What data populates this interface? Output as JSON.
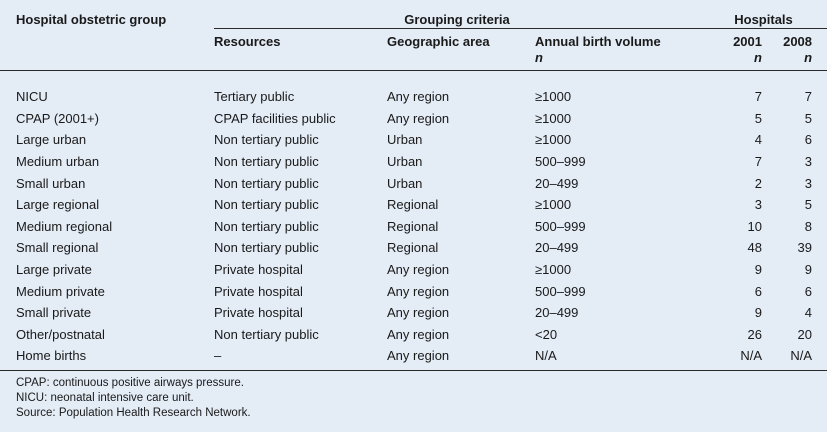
{
  "header": {
    "group_col": "Hospital obstetric group",
    "criteria": "Grouping criteria",
    "hospitals": "Hospitals",
    "resources": "Resources",
    "geographic": "Geographic area",
    "volume": "Annual birth volume",
    "volume_unit": "n",
    "year1": "2001",
    "year1_unit": "n",
    "year2": "2008",
    "year2_unit": "n"
  },
  "rows": [
    {
      "group": "NICU",
      "resources": "Tertiary public",
      "area": "Any region",
      "volume": "≥1000",
      "y2001": "7",
      "y2008": "7"
    },
    {
      "group": "CPAP (2001+)",
      "resources": "CPAP facilities public",
      "area": "Any region",
      "volume": "≥1000",
      "y2001": "5",
      "y2008": "5"
    },
    {
      "group": "Large urban",
      "resources": "Non tertiary public",
      "area": "Urban",
      "volume": "≥1000",
      "y2001": "4",
      "y2008": "6"
    },
    {
      "group": "Medium urban",
      "resources": "Non tertiary public",
      "area": "Urban",
      "volume": "500–999",
      "y2001": "7",
      "y2008": "3"
    },
    {
      "group": "Small urban",
      "resources": "Non tertiary public",
      "area": "Urban",
      "volume": "20–499",
      "y2001": "2",
      "y2008": "3"
    },
    {
      "group": "Large regional",
      "resources": "Non tertiary public",
      "area": "Regional",
      "volume": "≥1000",
      "y2001": "3",
      "y2008": "5"
    },
    {
      "group": "Medium regional",
      "resources": "Non tertiary public",
      "area": "Regional",
      "volume": "500–999",
      "y2001": "10",
      "y2008": "8"
    },
    {
      "group": "Small regional",
      "resources": "Non tertiary public",
      "area": "Regional",
      "volume": "20–499",
      "y2001": "48",
      "y2008": "39"
    },
    {
      "group": "Large private",
      "resources": "Private hospital",
      "area": "Any region",
      "volume": "≥1000",
      "y2001": "9",
      "y2008": "9"
    },
    {
      "group": "Medium private",
      "resources": "Private hospital",
      "area": "Any region",
      "volume": "500–999",
      "y2001": "6",
      "y2008": "6"
    },
    {
      "group": "Small private",
      "resources": "Private hospital",
      "area": "Any region",
      "volume": "20–499",
      "y2001": "9",
      "y2008": "4"
    },
    {
      "group": "Other/postnatal",
      "resources": "Non tertiary public",
      "area": "Any region",
      "volume": "<20",
      "y2001": "26",
      "y2008": "20"
    },
    {
      "group": "Home births",
      "resources": "–",
      "area": "Any region",
      "volume": "N/A",
      "y2001": "N/A",
      "y2008": "N/A"
    }
  ],
  "footnotes": [
    "CPAP: continuous positive airways pressure.",
    "NICU: neonatal intensive care unit.",
    "Source: Population Health Research Network."
  ]
}
